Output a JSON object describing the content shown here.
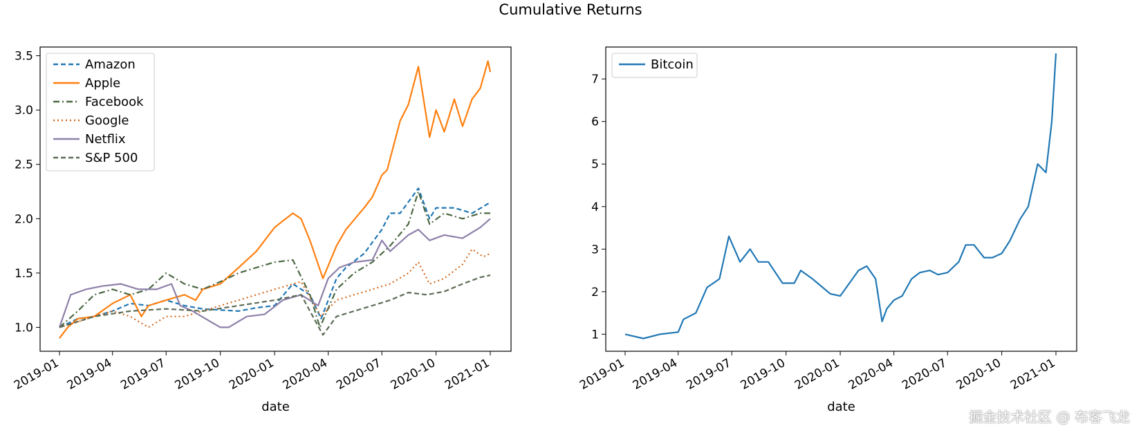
{
  "figure": {
    "title": "Cumulative Returns",
    "watermark": "掘金技术社区 @ 布客飞龙"
  },
  "chart_data": [
    {
      "type": "line",
      "xlabel": "date",
      "ylabel": "",
      "x_range": [
        "2019-01-01",
        "2021-01-01"
      ],
      "ylim": [
        0.78,
        3.58
      ],
      "yticks": [
        1.0,
        1.5,
        2.0,
        2.5,
        3.0,
        3.5
      ],
      "ytick_labels": [
        "1.0",
        "1.5",
        "2.0",
        "2.5",
        "3.0",
        "3.5"
      ],
      "xticks": [
        "2019-01",
        "2019-04",
        "2019-07",
        "2019-10",
        "2020-01",
        "2020-04",
        "2020-07",
        "2020-10",
        "2021-01"
      ],
      "legend_position": "upper-left",
      "series": [
        {
          "name": "Amazon",
          "color": "#1f77b4",
          "style": "dashed",
          "x": [
            "2019-01-01",
            "2019-02-01",
            "2019-03-01",
            "2019-04-01",
            "2019-05-01",
            "2019-06-01",
            "2019-07-01",
            "2019-08-01",
            "2019-09-01",
            "2019-10-01",
            "2019-11-01",
            "2019-12-01",
            "2020-01-01",
            "2020-02-01",
            "2020-03-01",
            "2020-03-20",
            "2020-04-15",
            "2020-05-01",
            "2020-06-01",
            "2020-07-01",
            "2020-07-15",
            "2020-08-01",
            "2020-09-01",
            "2020-09-20",
            "2020-10-01",
            "2020-11-01",
            "2020-12-01",
            "2021-01-01"
          ],
          "values": [
            1.0,
            1.08,
            1.1,
            1.15,
            1.22,
            1.2,
            1.25,
            1.2,
            1.17,
            1.16,
            1.15,
            1.18,
            1.2,
            1.4,
            1.3,
            1.08,
            1.45,
            1.55,
            1.68,
            1.9,
            2.05,
            2.05,
            2.28,
            2.0,
            2.1,
            2.1,
            2.05,
            2.15
          ]
        },
        {
          "name": "Apple",
          "color": "#ff7f0e",
          "style": "solid",
          "x": [
            "2019-01-01",
            "2019-01-15",
            "2019-02-01",
            "2019-03-01",
            "2019-04-01",
            "2019-05-01",
            "2019-05-20",
            "2019-06-01",
            "2019-07-01",
            "2019-08-01",
            "2019-08-20",
            "2019-09-01",
            "2019-10-01",
            "2019-11-01",
            "2019-12-01",
            "2020-01-01",
            "2020-02-01",
            "2020-02-15",
            "2020-03-01",
            "2020-03-23",
            "2020-04-15",
            "2020-05-01",
            "2020-06-01",
            "2020-06-15",
            "2020-07-01",
            "2020-07-10",
            "2020-08-01",
            "2020-08-15",
            "2020-09-01",
            "2020-09-20",
            "2020-10-01",
            "2020-10-15",
            "2020-11-01",
            "2020-11-15",
            "2020-12-01",
            "2020-12-15",
            "2020-12-28",
            "2021-01-01"
          ],
          "values": [
            0.9,
            1.0,
            1.08,
            1.1,
            1.22,
            1.3,
            1.1,
            1.2,
            1.25,
            1.3,
            1.25,
            1.35,
            1.4,
            1.55,
            1.7,
            1.92,
            2.05,
            2.0,
            1.8,
            1.45,
            1.75,
            1.9,
            2.1,
            2.2,
            2.4,
            2.45,
            2.9,
            3.05,
            3.4,
            2.75,
            3.0,
            2.8,
            3.1,
            2.85,
            3.1,
            3.2,
            3.45,
            3.35
          ]
        },
        {
          "name": "Facebook",
          "color": "#4a6741",
          "style": "dashdot",
          "x": [
            "2019-01-01",
            "2019-02-01",
            "2019-03-01",
            "2019-04-01",
            "2019-05-01",
            "2019-06-01",
            "2019-07-01",
            "2019-08-01",
            "2019-09-01",
            "2019-10-01",
            "2019-11-01",
            "2019-12-01",
            "2020-01-01",
            "2020-02-01",
            "2020-03-01",
            "2020-03-18",
            "2020-04-15",
            "2020-05-15",
            "2020-06-15",
            "2020-07-15",
            "2020-08-15",
            "2020-09-01",
            "2020-09-20",
            "2020-10-15",
            "2020-11-15",
            "2020-12-15",
            "2021-01-01"
          ],
          "values": [
            1.0,
            1.15,
            1.3,
            1.35,
            1.3,
            1.35,
            1.5,
            1.4,
            1.35,
            1.42,
            1.5,
            1.55,
            1.6,
            1.62,
            1.3,
            1.0,
            1.35,
            1.5,
            1.6,
            1.75,
            1.95,
            2.25,
            1.95,
            2.05,
            2.0,
            2.05,
            2.05
          ]
        },
        {
          "name": "Google",
          "color": "#d2691e",
          "style": "dotted",
          "x": [
            "2019-01-01",
            "2019-02-01",
            "2019-03-01",
            "2019-04-01",
            "2019-05-01",
            "2019-06-01",
            "2019-07-01",
            "2019-08-01",
            "2019-09-01",
            "2019-10-01",
            "2019-11-01",
            "2019-12-01",
            "2020-01-01",
            "2020-02-15",
            "2020-03-20",
            "2020-04-15",
            "2020-05-15",
            "2020-06-15",
            "2020-07-15",
            "2020-08-15",
            "2020-09-01",
            "2020-09-20",
            "2020-10-15",
            "2020-11-15",
            "2020-12-01",
            "2020-12-20",
            "2021-01-01"
          ],
          "values": [
            1.0,
            1.05,
            1.1,
            1.15,
            1.1,
            1.0,
            1.1,
            1.1,
            1.15,
            1.2,
            1.25,
            1.3,
            1.35,
            1.42,
            1.1,
            1.25,
            1.3,
            1.35,
            1.4,
            1.5,
            1.6,
            1.4,
            1.45,
            1.58,
            1.72,
            1.65,
            1.68
          ]
        },
        {
          "name": "Netflix",
          "color": "#8c7fa8",
          "style": "solid",
          "x": [
            "2019-01-01",
            "2019-01-20",
            "2019-02-15",
            "2019-03-15",
            "2019-04-15",
            "2019-05-15",
            "2019-06-15",
            "2019-07-10",
            "2019-07-25",
            "2019-08-15",
            "2019-09-15",
            "2019-10-01",
            "2019-10-15",
            "2019-11-15",
            "2019-12-15",
            "2020-01-15",
            "2020-02-15",
            "2020-03-15",
            "2020-04-01",
            "2020-04-20",
            "2020-05-15",
            "2020-06-15",
            "2020-07-01",
            "2020-07-15",
            "2020-08-15",
            "2020-09-01",
            "2020-09-20",
            "2020-10-15",
            "2020-11-15",
            "2020-12-15",
            "2021-01-01"
          ],
          "values": [
            1.0,
            1.3,
            1.35,
            1.38,
            1.4,
            1.35,
            1.35,
            1.4,
            1.2,
            1.15,
            1.05,
            1.0,
            1.0,
            1.1,
            1.12,
            1.25,
            1.3,
            1.2,
            1.45,
            1.55,
            1.6,
            1.62,
            1.8,
            1.7,
            1.85,
            1.9,
            1.8,
            1.85,
            1.82,
            1.92,
            2.0
          ]
        },
        {
          "name": "S&P 500",
          "color": "#5b6b54",
          "style": "dashed",
          "x": [
            "2019-01-01",
            "2019-03-01",
            "2019-05-01",
            "2019-07-01",
            "2019-09-01",
            "2019-11-01",
            "2020-01-01",
            "2020-02-15",
            "2020-03-23",
            "2020-04-15",
            "2020-05-15",
            "2020-06-15",
            "2020-07-15",
            "2020-08-15",
            "2020-09-15",
            "2020-10-15",
            "2020-11-15",
            "2020-12-15",
            "2021-01-01"
          ],
          "values": [
            1.0,
            1.1,
            1.15,
            1.17,
            1.15,
            1.2,
            1.25,
            1.3,
            0.93,
            1.1,
            1.15,
            1.2,
            1.25,
            1.32,
            1.3,
            1.33,
            1.4,
            1.46,
            1.48
          ]
        }
      ]
    },
    {
      "type": "line",
      "xlabel": "date",
      "ylabel": "",
      "x_range": [
        "2019-01-01",
        "2021-01-01"
      ],
      "ylim": [
        0.6,
        7.75
      ],
      "yticks": [
        1,
        2,
        3,
        4,
        5,
        6,
        7
      ],
      "ytick_labels": [
        "1",
        "2",
        "3",
        "4",
        "5",
        "6",
        "7"
      ],
      "xticks": [
        "2019-01",
        "2019-04",
        "2019-07",
        "2019-10",
        "2020-01",
        "2020-04",
        "2020-07",
        "2020-10",
        "2021-01"
      ],
      "legend_position": "upper-left",
      "series": [
        {
          "name": "Bitcoin",
          "color": "#1f77b4",
          "style": "solid",
          "x": [
            "2019-01-01",
            "2019-02-01",
            "2019-03-01",
            "2019-04-01",
            "2019-04-10",
            "2019-05-01",
            "2019-05-20",
            "2019-06-10",
            "2019-06-26",
            "2019-07-15",
            "2019-08-01",
            "2019-08-15",
            "2019-09-01",
            "2019-09-25",
            "2019-10-15",
            "2019-10-26",
            "2019-11-15",
            "2019-12-15",
            "2020-01-01",
            "2020-02-01",
            "2020-02-15",
            "2020-03-01",
            "2020-03-12",
            "2020-03-20",
            "2020-04-01",
            "2020-04-15",
            "2020-05-01",
            "2020-05-15",
            "2020-06-01",
            "2020-06-15",
            "2020-07-01",
            "2020-07-20",
            "2020-08-01",
            "2020-08-15",
            "2020-09-01",
            "2020-09-15",
            "2020-10-01",
            "2020-10-15",
            "2020-11-01",
            "2020-11-15",
            "2020-12-01",
            "2020-12-15",
            "2020-12-25",
            "2021-01-01"
          ],
          "values": [
            1.0,
            0.9,
            1.0,
            1.05,
            1.35,
            1.5,
            2.1,
            2.3,
            3.3,
            2.7,
            3.0,
            2.7,
            2.7,
            2.2,
            2.2,
            2.5,
            2.3,
            1.95,
            1.9,
            2.5,
            2.6,
            2.3,
            1.3,
            1.6,
            1.8,
            1.9,
            2.3,
            2.45,
            2.5,
            2.4,
            2.45,
            2.7,
            3.1,
            3.1,
            2.8,
            2.8,
            2.9,
            3.2,
            3.7,
            4.0,
            5.0,
            4.8,
            6.0,
            7.6
          ]
        }
      ]
    }
  ]
}
